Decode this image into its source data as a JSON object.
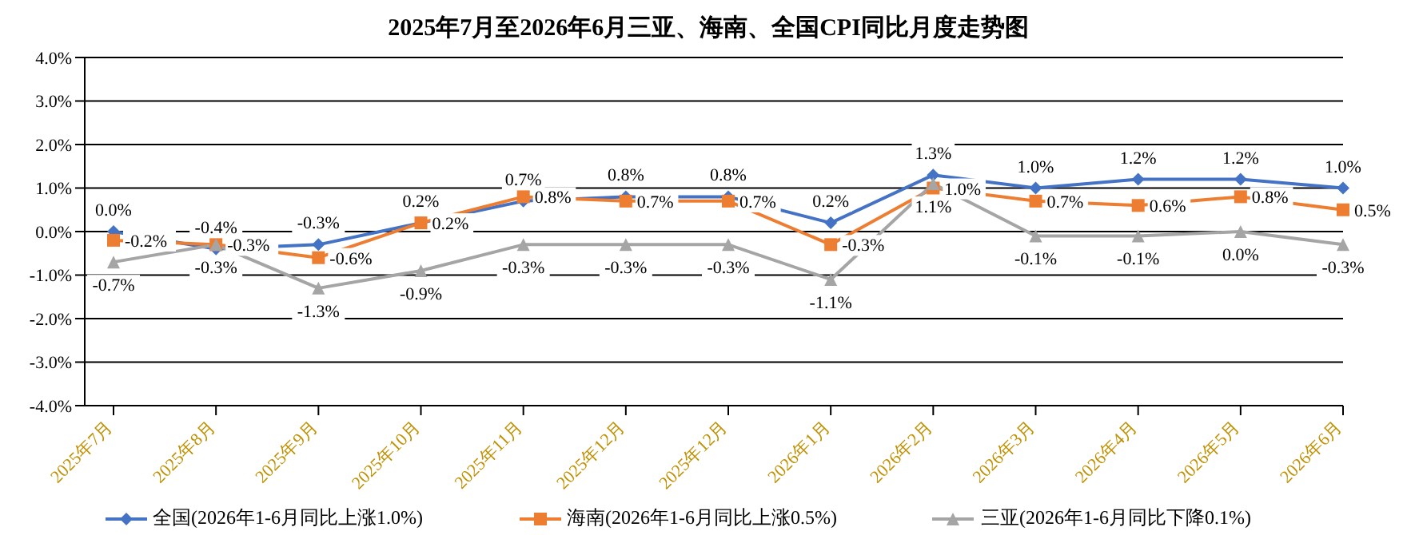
{
  "chart_data": {
    "type": "line",
    "title": "2025年7月至2026年6月三亚、海南、全国CPI同比月度走势图",
    "categories": [
      "2025年7月",
      "2025年8月",
      "2025年9月",
      "2025年10月",
      "2025年11月",
      "2025年12月",
      "2025年12月",
      "2026年1月",
      "2026年2月",
      "2026年3月",
      "2026年4月",
      "2026年5月",
      "2026年6月"
    ],
    "series": [
      {
        "name": "全国(2026年1-6月同比上涨1.0%)",
        "color": "#4472c4",
        "marker": "diamond",
        "values": [
          0.0,
          -0.4,
          -0.3,
          0.2,
          0.7,
          0.8,
          0.8,
          0.2,
          1.3,
          1.0,
          1.2,
          1.2,
          1.0
        ],
        "value_labels": [
          "0.0%",
          "-0.4%",
          "-0.3%",
          "0.2%",
          "0.7%",
          "0.8%",
          "0.8%",
          "0.2%",
          "1.3%",
          "1.0%",
          "1.2%",
          "1.2%",
          "1.0%"
        ]
      },
      {
        "name": "海南(2026年1-6月同比上涨0.5%)",
        "color": "#ed7d31",
        "marker": "square",
        "values": [
          -0.2,
          -0.3,
          -0.6,
          0.2,
          0.8,
          0.7,
          0.7,
          -0.3,
          1.0,
          0.7,
          0.6,
          0.8,
          0.5
        ],
        "value_labels": [
          "-0.2%",
          "-0.3%",
          "-0.6%",
          "0.2%",
          "0.8%",
          "0.7%",
          "0.7%",
          "-0.3%",
          "1.0%",
          "0.7%",
          "0.6%",
          "0.8%",
          "0.5%"
        ]
      },
      {
        "name": "三亚(2026年1-6月同比下降0.1%)",
        "color": "#a5a5a5",
        "marker": "triangle",
        "values": [
          -0.7,
          -0.3,
          -1.3,
          -0.9,
          -0.3,
          -0.3,
          -0.3,
          -1.1,
          1.1,
          -0.1,
          -0.1,
          0.0,
          -0.3
        ],
        "value_labels": [
          "-0.7%",
          "-0.3%",
          "-1.3%",
          "-0.9%",
          "-0.3%",
          "-0.3%",
          "-0.3%",
          "-1.1%",
          "1.1%",
          "-0.1%",
          "-0.1%",
          "0.0%",
          "-0.3%"
        ]
      }
    ],
    "ylim": [
      -4,
      4
    ],
    "yticks": [
      {
        "value": -4,
        "label": "-4.0%"
      },
      {
        "value": -3,
        "label": "-3.0%"
      },
      {
        "value": -2,
        "label": "-2.0%"
      },
      {
        "value": -1,
        "label": "-1.0%"
      },
      {
        "value": 0,
        "label": "0.0%"
      },
      {
        "value": 1,
        "label": "1.0%"
      },
      {
        "value": 2,
        "label": "2.0%"
      },
      {
        "value": 3,
        "label": "3.0%"
      },
      {
        "value": 4,
        "label": "4.0%"
      }
    ],
    "grid": "y",
    "legend": "bottom",
    "line_style": "solid"
  }
}
